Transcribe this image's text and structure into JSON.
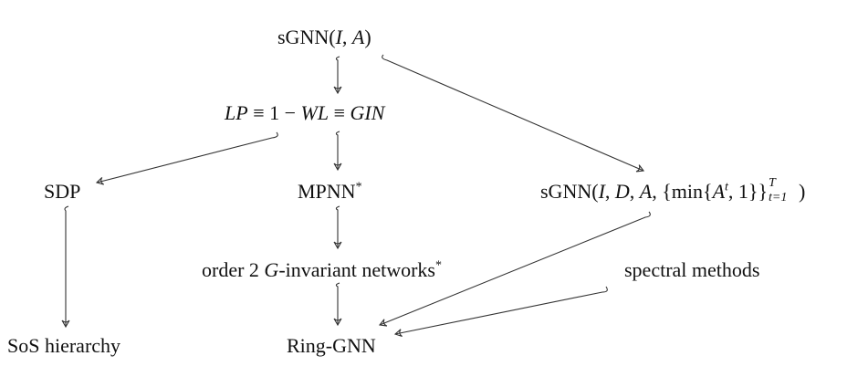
{
  "nodes": {
    "sgnn_ia": {
      "prefix": "sGNN(",
      "var1": "I",
      "sep": ", ",
      "var2": "A",
      "suffix": ")"
    },
    "lp_wl_gin": {
      "lp": "LP",
      "eq1": " ≡ 1 − ",
      "wl": "WL",
      "eq2": " ≡ ",
      "gin": "GIN"
    },
    "sdp": {
      "label": "SDP"
    },
    "mpnn": {
      "label": "MPNN",
      "mark": "*"
    },
    "sgnn_full": {
      "prefix": "sGNN(",
      "v1": "I",
      "s1": ", ",
      "v2": "D",
      "s2": ", ",
      "v3": "A",
      "s3": ", {min{",
      "v4": "A",
      "sup": "t",
      "s4": ", 1}}",
      "sup2": "T",
      "sub": "t=1",
      "suffix": ")"
    },
    "order2": {
      "pre": "order 2 ",
      "g": "G",
      "post": "-invariant networks",
      "mark": "*"
    },
    "spectral": {
      "label": "spectral methods"
    },
    "sos": {
      "label": "SoS hierarchy"
    },
    "ring_gnn": {
      "label": "Ring-GNN"
    }
  },
  "edges": [
    {
      "from": "sGNN(I, A)",
      "to": "LP ≡ 1 − WL ≡ GIN"
    },
    {
      "from": "sGNN(I, A)",
      "to": "sGNN(I, D, A, {min{A^t, 1}}_{t=1}^T)"
    },
    {
      "from": "LP ≡ 1 − WL ≡ GIN",
      "to": "SDP"
    },
    {
      "from": "LP ≡ 1 − WL ≡ GIN",
      "to": "MPNN*"
    },
    {
      "from": "MPNN*",
      "to": "order 2 G-invariant networks*"
    },
    {
      "from": "order 2 G-invariant networks*",
      "to": "Ring-GNN"
    },
    {
      "from": "SDP",
      "to": "SoS hierarchy"
    },
    {
      "from": "sGNN(I, D, A, {min{A^t, 1}}_{t=1}^T)",
      "to": "Ring-GNN"
    },
    {
      "from": "spectral methods",
      "to": "Ring-GNN"
    }
  ]
}
